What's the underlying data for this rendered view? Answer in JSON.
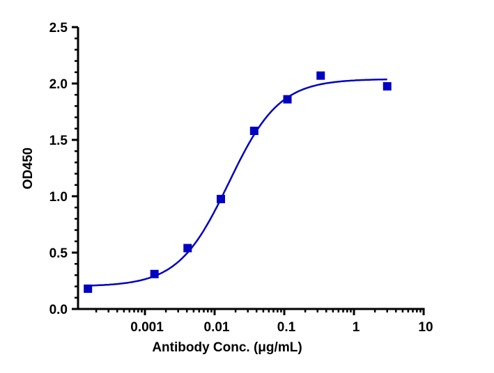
{
  "chart_data": {
    "type": "scatter",
    "title": "",
    "xlabel": "Antibody Conc. (μg/mL)",
    "ylabel": "OD450",
    "xscale": "log",
    "xlim": [
      0.0001,
      10
    ],
    "ylim": [
      0,
      2.5
    ],
    "xticks": [
      0.001,
      0.01,
      0.1,
      1,
      10
    ],
    "xtick_labels": [
      "0.001",
      "0.01",
      "0.1",
      "1",
      "10"
    ],
    "yticks": [
      0,
      0.5,
      1.0,
      1.5,
      2.0,
      2.5
    ],
    "ytick_labels": [
      "0.0",
      "0.5",
      "1.0",
      "1.5",
      "2.0",
      "2.5"
    ],
    "grid": false,
    "series": [
      {
        "marker": "square",
        "color": "#0000c0",
        "x": [
          0.000152,
          0.00137,
          0.0041,
          0.0123,
          0.037,
          0.111,
          0.333,
          3.0
        ],
        "y": [
          0.18,
          0.31,
          0.54,
          0.975,
          1.58,
          1.86,
          2.07,
          1.975
        ]
      }
    ],
    "fit": {
      "model": "4PL",
      "color": "#0000c0",
      "bottom": 0.2,
      "top": 2.04,
      "ec50": 0.016,
      "hill": 1.2
    }
  }
}
